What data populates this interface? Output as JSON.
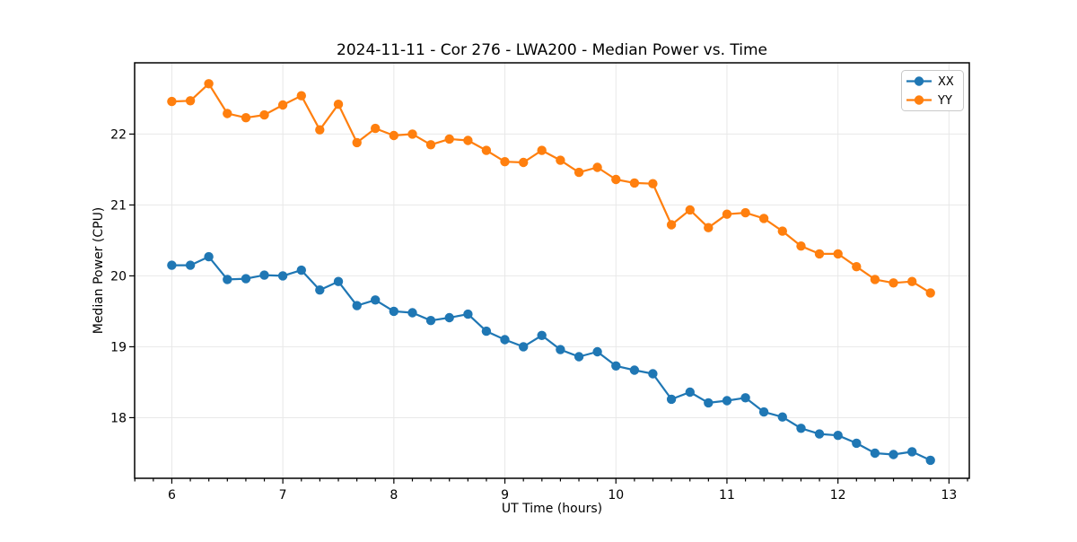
{
  "chart_data": {
    "type": "line",
    "title": "2024-11-11 - Cor 276 - LWA200 - Median Power vs. Time",
    "xlabel": "UT Time (hours)",
    "ylabel": "Median Power (CPU)",
    "x": [
      6.0,
      6.167,
      6.333,
      6.5,
      6.667,
      6.833,
      7.0,
      7.167,
      7.333,
      7.5,
      7.667,
      7.833,
      8.0,
      8.167,
      8.333,
      8.5,
      8.667,
      8.833,
      9.0,
      9.167,
      9.333,
      9.5,
      9.667,
      9.833,
      10.0,
      10.167,
      10.333,
      10.5,
      10.667,
      10.833,
      11.0,
      11.167,
      11.333,
      11.5,
      11.667,
      11.833,
      12.0,
      12.167,
      12.333,
      12.5,
      12.667,
      12.833
    ],
    "series": [
      {
        "name": "XX",
        "color": "#1f77b4",
        "values": [
          20.15,
          20.15,
          20.27,
          19.95,
          19.96,
          20.01,
          20.0,
          20.08,
          19.8,
          19.92,
          19.58,
          19.66,
          19.5,
          19.48,
          19.37,
          19.41,
          19.46,
          19.22,
          19.1,
          19.0,
          19.16,
          18.96,
          18.86,
          18.93,
          18.73,
          18.67,
          18.62,
          18.26,
          18.36,
          18.21,
          18.24,
          18.28,
          18.08,
          18.01,
          17.85,
          17.77,
          17.75,
          17.64,
          17.5,
          17.48,
          17.52,
          17.4
        ]
      },
      {
        "name": "YY",
        "color": "#ff7f0e",
        "values": [
          22.46,
          22.47,
          22.71,
          22.29,
          22.23,
          22.27,
          22.41,
          22.54,
          22.06,
          22.42,
          21.88,
          22.08,
          21.98,
          22.0,
          21.85,
          21.93,
          21.91,
          21.77,
          21.61,
          21.6,
          21.77,
          21.63,
          21.46,
          21.53,
          21.36,
          21.31,
          21.3,
          20.72,
          20.93,
          20.68,
          20.87,
          20.89,
          20.81,
          20.63,
          20.42,
          20.31,
          20.31,
          20.13,
          19.95,
          19.9,
          19.92,
          19.76
        ]
      }
    ],
    "x_range": [
      5.665,
      13.183
    ],
    "y_range": [
      17.145,
      23.005
    ],
    "x_ticks": [
      6,
      7,
      8,
      9,
      10,
      11,
      12,
      13
    ],
    "y_ticks": [
      18,
      19,
      20,
      21,
      22
    ],
    "x_minor_interval": 0.16667,
    "grid": true,
    "marker": "o",
    "legend_position": "upper right"
  }
}
